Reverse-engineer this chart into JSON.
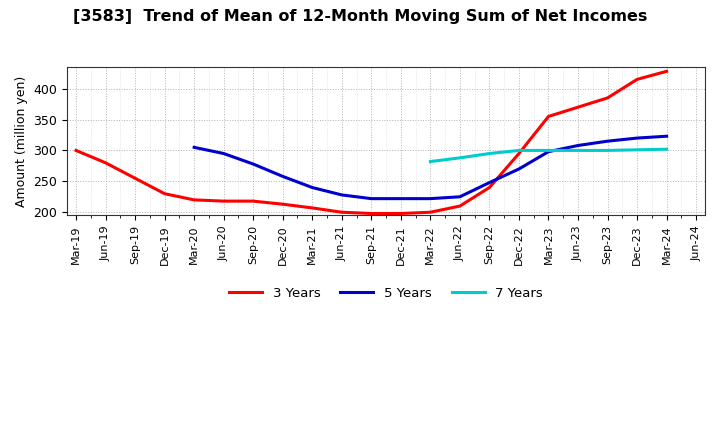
{
  "title": "[3583]  Trend of Mean of 12-Month Moving Sum of Net Incomes",
  "ylabel": "Amount (million yen)",
  "background_color": "#ffffff",
  "grid_color": "#aaaaaa",
  "ylim": [
    195,
    435
  ],
  "yticks": [
    200,
    250,
    300,
    350,
    400
  ],
  "xtick_labels": [
    "Mar-19",
    "Jun-19",
    "Sep-19",
    "Dec-19",
    "Mar-20",
    "Jun-20",
    "Sep-20",
    "Dec-20",
    "Mar-21",
    "Jun-21",
    "Sep-21",
    "Dec-21",
    "Mar-22",
    "Jun-22",
    "Sep-22",
    "Dec-22",
    "Mar-23",
    "Jun-23",
    "Sep-23",
    "Dec-23",
    "Mar-24",
    "Jun-24"
  ],
  "series": {
    "3 Years": {
      "color": "#ff0000",
      "x_idx": [
        0,
        1,
        2,
        3,
        4,
        5,
        6,
        7,
        8,
        9,
        10,
        11,
        12,
        13,
        14,
        15,
        16,
        17,
        18,
        19,
        20
      ],
      "y": [
        300,
        280,
        255,
        230,
        220,
        218,
        218,
        213,
        207,
        200,
        198,
        198,
        200,
        210,
        240,
        295,
        355,
        370,
        385,
        415,
        428
      ]
    },
    "5 Years": {
      "color": "#0000cc",
      "x_idx": [
        4,
        5,
        6,
        7,
        8,
        9,
        10,
        11,
        12,
        13,
        14,
        15,
        16,
        17,
        18,
        19,
        20
      ],
      "y": [
        305,
        295,
        278,
        258,
        240,
        228,
        222,
        222,
        222,
        225,
        248,
        270,
        298,
        308,
        315,
        320,
        323
      ]
    },
    "7 Years": {
      "color": "#00cccc",
      "x_idx": [
        12,
        13,
        14,
        15,
        16,
        17,
        18,
        19,
        20
      ],
      "y": [
        282,
        288,
        295,
        300,
        300,
        300,
        300,
        301,
        302
      ]
    },
    "10 Years": {
      "color": "#006600",
      "x_idx": [],
      "y": []
    }
  }
}
